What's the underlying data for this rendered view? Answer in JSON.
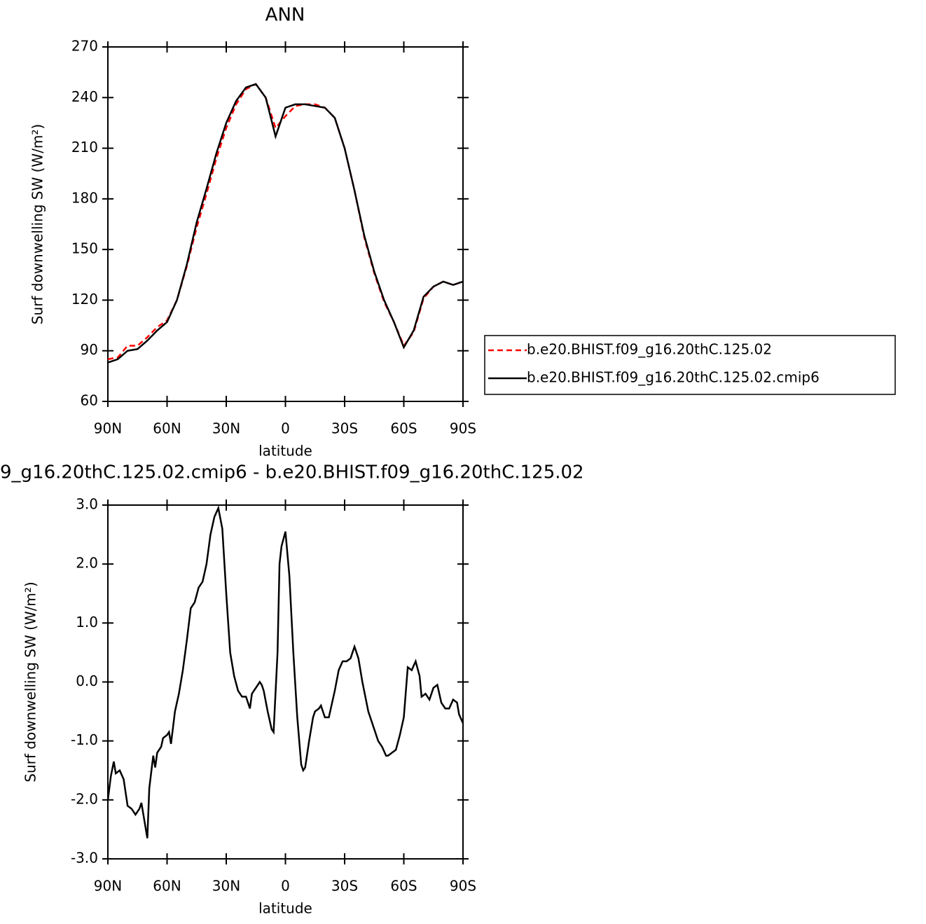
{
  "chart_data": [
    {
      "type": "line",
      "title": "ANN",
      "x_label": "latitude",
      "y_label": "Surf downwelling SW (W/m²)",
      "x": [
        90,
        85,
        80,
        75,
        70,
        65,
        60,
        55,
        50,
        45,
        40,
        35,
        30,
        25,
        20,
        15,
        10,
        5,
        0,
        -5,
        -10,
        -15,
        -20,
        -25,
        -30,
        -35,
        -40,
        -45,
        -50,
        -55,
        -60,
        -65,
        -70,
        -75,
        -80,
        -85,
        -90
      ],
      "series": [
        {
          "name": "b.e20.BHIST.f09_g16.20thC.125.02",
          "color": "#ff0000",
          "style": "dashed",
          "values": [
            85,
            86,
            93,
            93,
            98,
            104,
            108,
            120,
            140,
            163,
            183,
            204,
            222,
            236,
            245,
            248,
            240,
            222,
            229,
            235,
            236,
            236,
            234,
            228,
            210,
            185,
            157,
            136,
            119,
            107,
            93,
            101,
            121,
            128,
            131,
            129,
            131
          ]
        },
        {
          "name": "b.e20.BHIST.f09_g16.20thC.125.02.cmip6",
          "color": "#000000",
          "style": "solid",
          "values": [
            83,
            85,
            90,
            91,
            96,
            102,
            107,
            120,
            141,
            166,
            186,
            207,
            225,
            238,
            246,
            248,
            240,
            217,
            234,
            236,
            236,
            235,
            234,
            228,
            210,
            185,
            158,
            137,
            120,
            107,
            92,
            102,
            122,
            128,
            131,
            129,
            131
          ]
        }
      ],
      "xlim": [
        90,
        -90
      ],
      "xticks": [
        {
          "value": 90,
          "label": "90N"
        },
        {
          "value": 60,
          "label": "60N"
        },
        {
          "value": 30,
          "label": "30N"
        },
        0,
        {
          "value": -30,
          "label": "30S"
        },
        {
          "value": -60,
          "label": "60S"
        },
        {
          "value": -90,
          "label": "90S"
        }
      ],
      "ylim": [
        60,
        270
      ],
      "yticks": [
        60,
        90,
        120,
        150,
        180,
        210,
        240,
        270
      ],
      "legend": "right"
    },
    {
      "type": "line",
      "title": "9_g16.20thC.125.02.cmip6 - b.e20.BHIST.f09_g16.20thC.125.02",
      "x_label": "latitude",
      "y_label": "Surf downwelling SW (W/m²)",
      "x": [
        90,
        88.5,
        87,
        86,
        84,
        82,
        80,
        78,
        76,
        74,
        73,
        72,
        70,
        69,
        67,
        66,
        65,
        63,
        62,
        60,
        59,
        58,
        56,
        54,
        52,
        50,
        48,
        46,
        44,
        42,
        40,
        38,
        36,
        34,
        32,
        30,
        28,
        26,
        24,
        22,
        20,
        18,
        17,
        15,
        13,
        12,
        11,
        9,
        7,
        6,
        4,
        3,
        2,
        0,
        -2,
        -4,
        -6,
        -8,
        -9,
        -10,
        -12,
        -14,
        -15,
        -17,
        -18,
        -20,
        -22,
        -25,
        -27,
        -29,
        -31,
        -33,
        -35,
        -37,
        -39,
        -42,
        -45,
        -47,
        -49,
        -51,
        -52,
        -54,
        -56,
        -58,
        -60,
        -62,
        -64,
        -66,
        -68,
        -69,
        -71,
        -73,
        -75,
        -77,
        -79,
        -81,
        -83,
        -85,
        -87,
        -88,
        -90
      ],
      "series": [
        {
          "color": "#000000",
          "style": "solid",
          "values": [
            -2.0,
            -1.6,
            -1.35,
            -1.55,
            -1.5,
            -1.65,
            -2.1,
            -2.15,
            -2.25,
            -2.15,
            -2.05,
            -2.25,
            -2.65,
            -1.8,
            -1.25,
            -1.45,
            -1.2,
            -1.1,
            -0.95,
            -0.9,
            -0.85,
            -1.05,
            -0.5,
            -0.2,
            0.2,
            0.7,
            1.25,
            1.35,
            1.6,
            1.7,
            2.0,
            2.5,
            2.8,
            2.95,
            2.6,
            1.5,
            0.5,
            0.1,
            -0.15,
            -0.25,
            -0.25,
            -0.45,
            -0.2,
            -0.1,
            0.0,
            -0.05,
            -0.15,
            -0.5,
            -0.8,
            -0.85,
            0.5,
            2.0,
            2.3,
            2.55,
            1.8,
            0.5,
            -0.6,
            -1.4,
            -1.5,
            -1.45,
            -1.0,
            -0.6,
            -0.5,
            -0.45,
            -0.4,
            -0.6,
            -0.6,
            -0.15,
            0.2,
            0.35,
            0.35,
            0.4,
            0.6,
            0.4,
            0.0,
            -0.5,
            -0.8,
            -1.0,
            -1.1,
            -1.25,
            -1.25,
            -1.2,
            -1.15,
            -0.9,
            -0.6,
            0.25,
            0.2,
            0.35,
            0.1,
            -0.25,
            -0.2,
            -0.3,
            -0.1,
            -0.05,
            -0.35,
            -0.45,
            -0.45,
            -0.3,
            -0.35,
            -0.55,
            -0.7
          ]
        }
      ],
      "xlim": [
        90,
        -90
      ],
      "xticks": [
        {
          "value": 90,
          "label": "90N"
        },
        {
          "value": 60,
          "label": "60N"
        },
        {
          "value": 30,
          "label": "30N"
        },
        0,
        {
          "value": -30,
          "label": "30S"
        },
        {
          "value": -60,
          "label": "60S"
        },
        {
          "value": -90,
          "label": "90S"
        }
      ],
      "ylim": [
        -3,
        3
      ],
      "yticks": [
        {
          "value": -3,
          "label": "-3.0"
        },
        {
          "value": -2,
          "label": "-2.0"
        },
        {
          "value": -1,
          "label": "-1.0"
        },
        {
          "value": 0,
          "label": "0.0"
        },
        {
          "value": 1,
          "label": "1.0"
        },
        {
          "value": 2,
          "label": "2.0"
        },
        {
          "value": 3,
          "label": "3.0"
        }
      ]
    }
  ]
}
